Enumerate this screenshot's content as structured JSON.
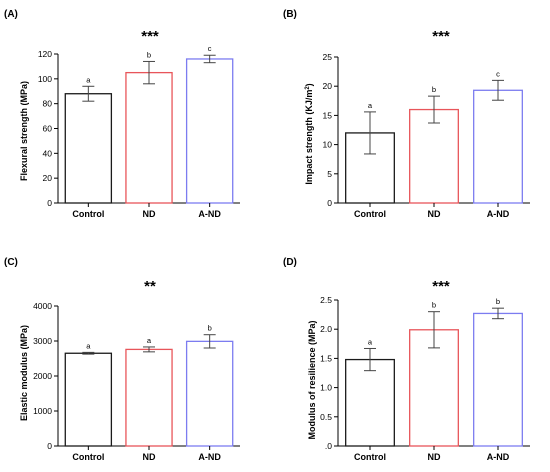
{
  "colors": {
    "Control": "#1a1a1a",
    "ND": "#e8555a",
    "A-ND": "#7c7cf0",
    "axis": "#000000",
    "errorbar": "#444444"
  },
  "chart_data": [
    {
      "type": "bar",
      "panel": "(A)",
      "significance": "***",
      "ylabel": "Flexural strength (MPa)",
      "categories": [
        "Control",
        "ND",
        "A-ND"
      ],
      "values": [
        88,
        105,
        116
      ],
      "errors": [
        6,
        9,
        3
      ],
      "letters": [
        "a",
        "b",
        "c"
      ],
      "ylim": [
        0,
        120
      ],
      "yticks": [
        "0",
        "20",
        "40",
        "60",
        "80",
        "100",
        "120"
      ]
    },
    {
      "type": "bar",
      "panel": "(B)",
      "significance": "***",
      "ylabel_main": "Impact strength (KJ/m",
      "ylabel_sup": "2",
      "ylabel_end": ")",
      "categories": [
        "Control",
        "ND",
        "A-ND"
      ],
      "values": [
        12,
        16,
        19.3
      ],
      "errors": [
        3.6,
        2.3,
        1.7
      ],
      "letters": [
        "a",
        "b",
        "c"
      ],
      "ylim": [
        0,
        25
      ],
      "yticks": [
        "0",
        "5",
        "10",
        "15",
        "20",
        "25"
      ]
    },
    {
      "type": "bar",
      "panel": "(C)",
      "significance": "**",
      "ylabel": "Elastic modulus (MPa)",
      "categories": [
        "Control",
        "ND",
        "A-ND"
      ],
      "values": [
        2650,
        2760,
        2990
      ],
      "errors": [
        25,
        70,
        190
      ],
      "letters": [
        "a",
        "a",
        "b"
      ],
      "ylim": [
        0,
        4000
      ],
      "yticks": [
        "0",
        "1000",
        "2000",
        "3000",
        "4000"
      ]
    },
    {
      "type": "bar",
      "panel": "(D)",
      "significance": "***",
      "ylabel": "Modulus of resilience (MPa)",
      "categories": [
        "Control",
        "ND",
        "A-ND"
      ],
      "values": [
        1.48,
        1.99,
        2.27
      ],
      "errors": [
        0.19,
        0.31,
        0.09
      ],
      "letters": [
        "a",
        "b",
        "b"
      ],
      "ylim": [
        0,
        2.5
      ],
      "yticks": [
        ".0",
        "0.5",
        "1.0",
        "1.5",
        "2.0",
        "2.5"
      ]
    }
  ]
}
